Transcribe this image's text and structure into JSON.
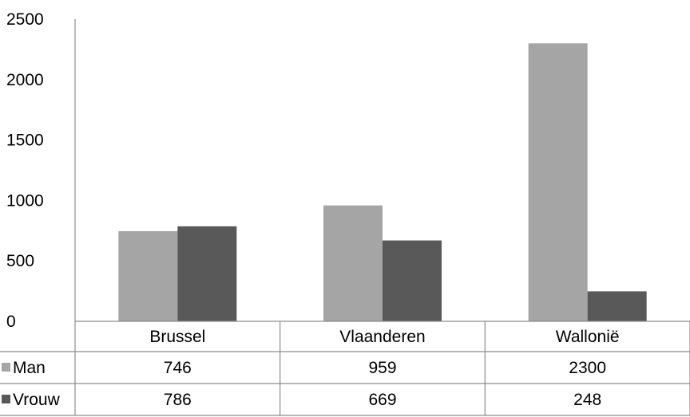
{
  "chart_data": {
    "type": "bar",
    "categories": [
      "Brussel",
      "Vlaanderen",
      "Wallonië"
    ],
    "series": [
      {
        "name": "Man",
        "values": [
          746,
          959,
          2300
        ],
        "color": "#a5a5a5"
      },
      {
        "name": "Vrouw",
        "values": [
          786,
          669,
          248
        ],
        "color": "#595959"
      }
    ],
    "ylim": [
      0,
      2500
    ],
    "yticks": [
      0,
      500,
      1000,
      1500,
      2000,
      2500
    ],
    "grid": false,
    "legend": "data-table",
    "axis_color": "#8c8c8c"
  }
}
